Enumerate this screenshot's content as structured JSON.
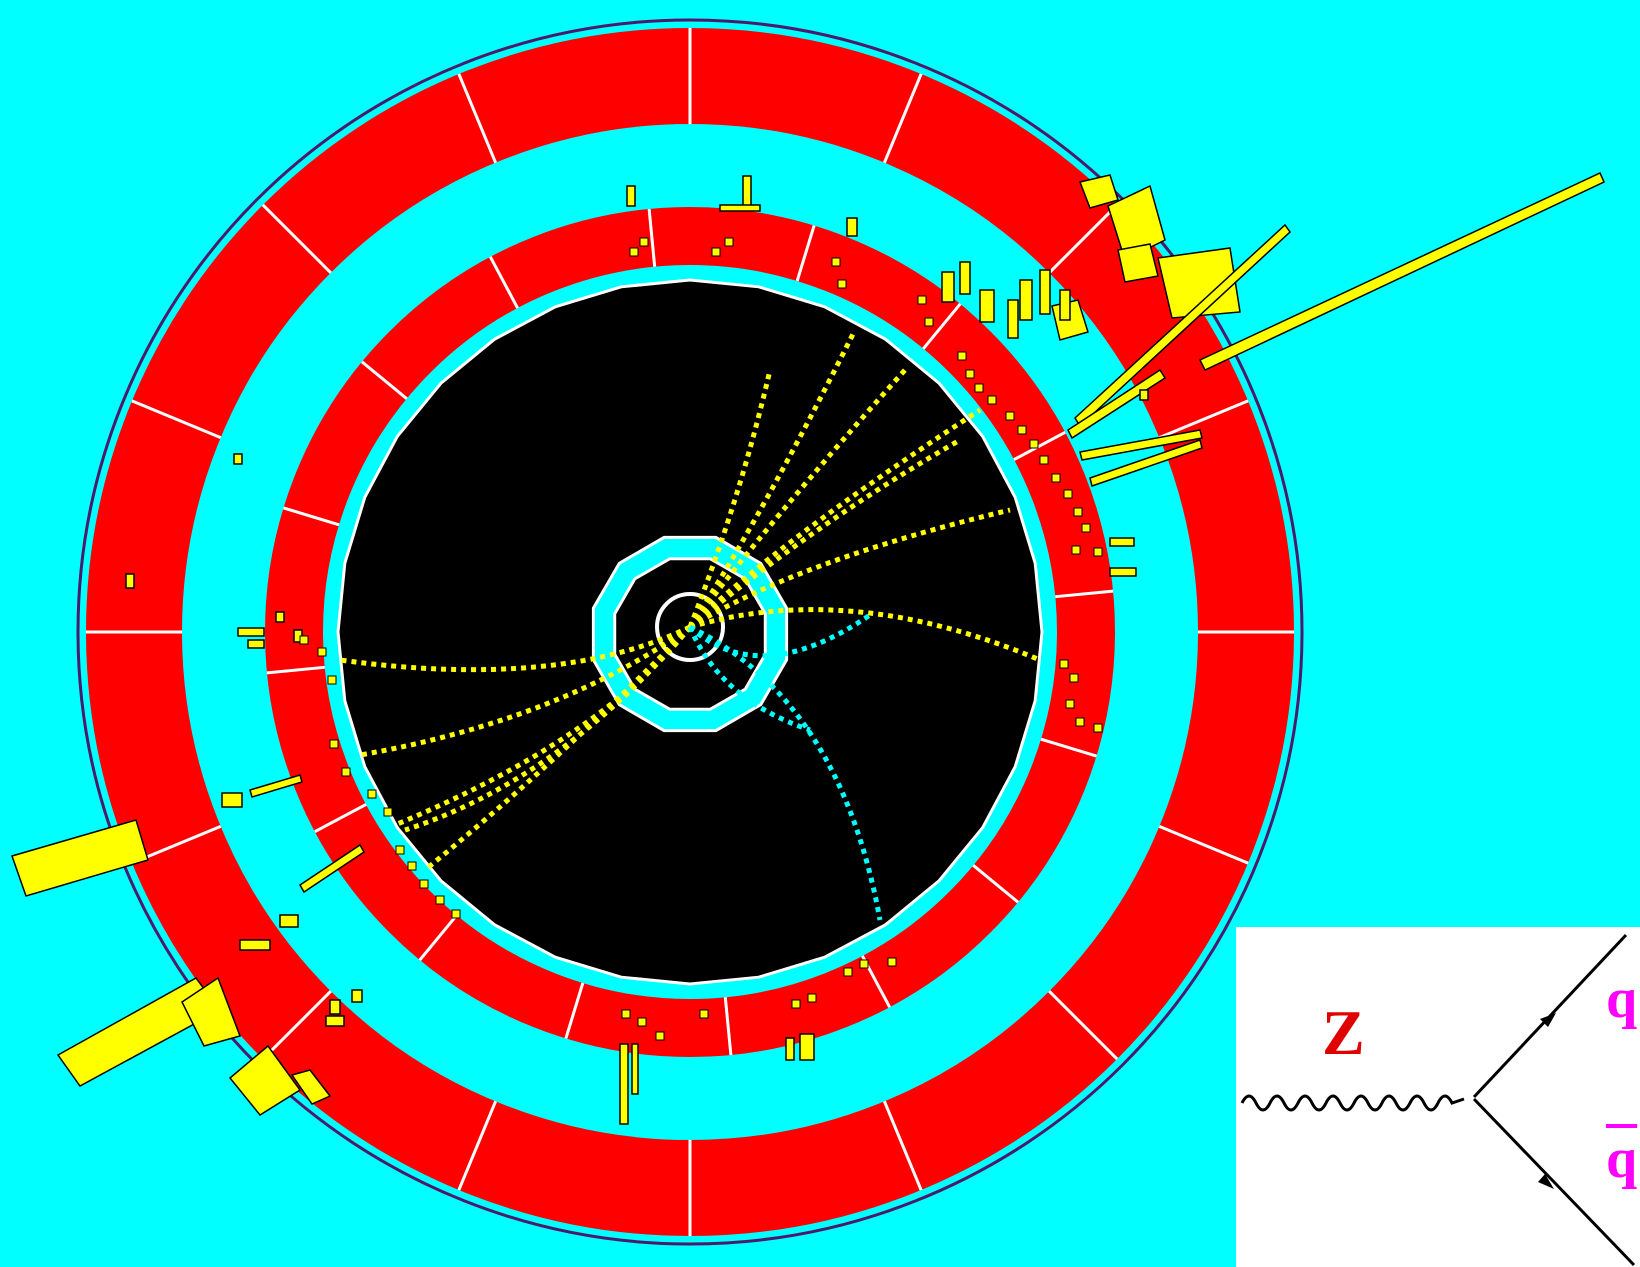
{
  "diagram": {
    "labels": {
      "boson": "Z",
      "quark": "q",
      "antiquark": "q"
    }
  },
  "colors": {
    "background": "#00ffff",
    "calorimeter": "#ff0000",
    "tracker": "#000000",
    "hits": "#ffff00",
    "hit_outline": "#000000",
    "module_lines": "#ffffff",
    "outer_rings": "#4b1a6a",
    "cyan_hits": "#00ffff",
    "z_label": "#e00000",
    "quark_labels": "#ff00ff",
    "feynman_lines": "#000000",
    "inset_background": "#ffffff"
  }
}
